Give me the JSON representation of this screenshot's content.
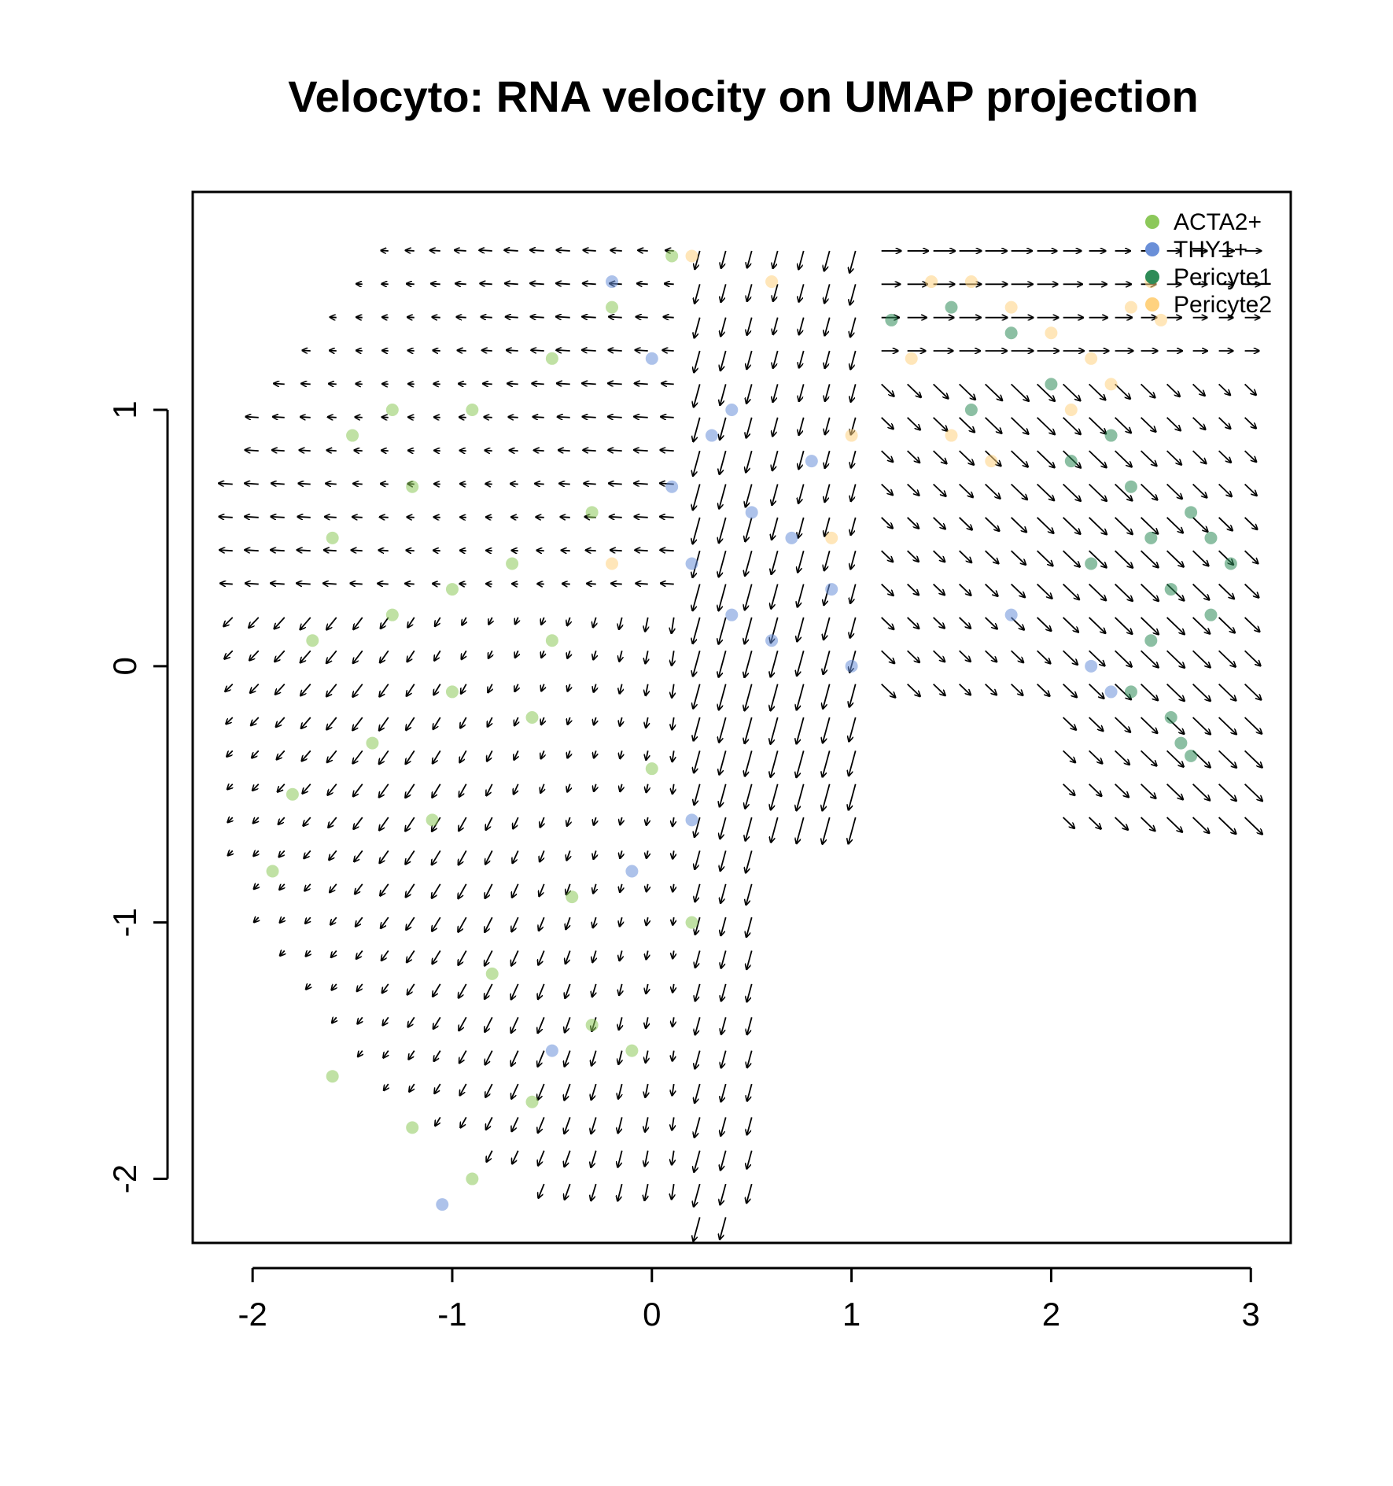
{
  "chart_data": {
    "type": "scatter",
    "title": "Velocyto: RNA velocity on UMAP projection",
    "xlabel": "",
    "ylabel": "",
    "xlim": [
      -2.3,
      3.2
    ],
    "ylim": [
      -2.25,
      1.85
    ],
    "x_ticks": [
      -2,
      -1,
      0,
      1,
      2,
      3
    ],
    "y_ticks": [
      -2,
      -1,
      0,
      1
    ],
    "x_tick_labels": [
      "-2",
      "-1",
      "0",
      "1",
      "2",
      "3"
    ],
    "y_tick_labels": [
      "-2",
      "-1",
      "0",
      "1"
    ],
    "legend_position": "top-right",
    "series": [
      {
        "name": "ACTA2+",
        "color": "#8cc85a",
        "points": [
          [
            -1.9,
            -0.8
          ],
          [
            -1.8,
            -0.5
          ],
          [
            -1.7,
            0.1
          ],
          [
            -1.6,
            0.5
          ],
          [
            -1.5,
            0.9
          ],
          [
            -1.4,
            -0.3
          ],
          [
            -1.3,
            0.2
          ],
          [
            -1.2,
            0.7
          ],
          [
            -1.1,
            -0.6
          ],
          [
            -1.0,
            0.3
          ],
          [
            -0.9,
            1.0
          ],
          [
            -0.8,
            -1.2
          ],
          [
            -0.7,
            0.4
          ],
          [
            -0.6,
            -0.2
          ],
          [
            -0.5,
            1.2
          ],
          [
            -0.4,
            -0.9
          ],
          [
            -0.3,
            0.6
          ],
          [
            -0.2,
            1.4
          ],
          [
            -0.1,
            -1.5
          ],
          [
            0.0,
            -0.4
          ],
          [
            0.1,
            1.6
          ],
          [
            -1.6,
            -1.6
          ],
          [
            -1.2,
            -1.8
          ],
          [
            -0.9,
            -2.0
          ],
          [
            -0.6,
            -1.7
          ],
          [
            -0.3,
            -1.4
          ],
          [
            0.2,
            -1.0
          ],
          [
            -1.0,
            -0.1
          ],
          [
            -0.5,
            0.1
          ],
          [
            -1.3,
            1.0
          ]
        ]
      },
      {
        "name": "THY1+",
        "color": "#6a8fd8",
        "points": [
          [
            0.1,
            0.7
          ],
          [
            0.2,
            0.4
          ],
          [
            0.3,
            0.9
          ],
          [
            0.4,
            0.2
          ],
          [
            0.5,
            0.6
          ],
          [
            0.6,
            0.1
          ],
          [
            0.7,
            0.5
          ],
          [
            0.8,
            0.8
          ],
          [
            0.9,
            0.3
          ],
          [
            1.0,
            0.0
          ],
          [
            0.0,
            1.2
          ],
          [
            -0.2,
            1.5
          ],
          [
            0.4,
            1.0
          ],
          [
            -0.1,
            -0.8
          ],
          [
            0.2,
            -0.6
          ],
          [
            1.8,
            0.2
          ],
          [
            2.2,
            0.0
          ],
          [
            2.3,
            -0.1
          ],
          [
            -1.05,
            -2.1
          ],
          [
            -0.5,
            -1.5
          ]
        ]
      },
      {
        "name": "Pericyte1",
        "color": "#2e8b57",
        "points": [
          [
            2.3,
            0.9
          ],
          [
            2.4,
            0.7
          ],
          [
            2.5,
            0.5
          ],
          [
            2.6,
            0.3
          ],
          [
            2.7,
            0.6
          ],
          [
            2.8,
            0.2
          ],
          [
            2.9,
            0.4
          ],
          [
            2.5,
            0.1
          ],
          [
            2.6,
            -0.2
          ],
          [
            2.7,
            -0.35
          ],
          [
            2.4,
            -0.1
          ],
          [
            2.1,
            0.8
          ],
          [
            2.0,
            1.1
          ],
          [
            1.8,
            1.3
          ],
          [
            1.6,
            1.0
          ],
          [
            1.5,
            1.4
          ],
          [
            2.2,
            0.4
          ],
          [
            2.8,
            0.5
          ],
          [
            2.65,
            -0.3
          ],
          [
            1.2,
            1.35
          ]
        ]
      },
      {
        "name": "Pericyte2",
        "color": "#ffd27f",
        "points": [
          [
            1.4,
            1.5
          ],
          [
            1.6,
            1.5
          ],
          [
            1.8,
            1.4
          ],
          [
            2.0,
            1.3
          ],
          [
            2.2,
            1.2
          ],
          [
            2.4,
            1.4
          ],
          [
            2.5,
            1.5
          ],
          [
            2.55,
            1.35
          ],
          [
            1.3,
            1.2
          ],
          [
            1.5,
            0.9
          ],
          [
            1.7,
            0.8
          ],
          [
            2.1,
            1.0
          ],
          [
            1.0,
            0.9
          ],
          [
            0.9,
            0.5
          ],
          [
            -0.2,
            0.4
          ],
          [
            0.2,
            1.6
          ],
          [
            0.6,
            1.5
          ],
          [
            2.3,
            1.1
          ]
        ]
      }
    ]
  }
}
